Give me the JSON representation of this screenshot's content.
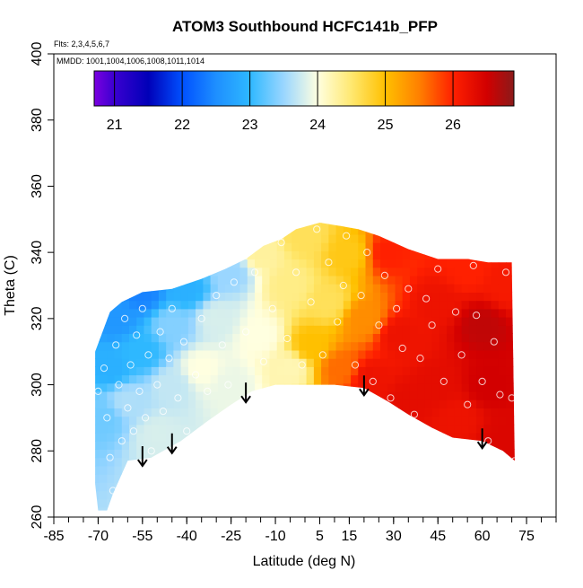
{
  "chart_data": {
    "type": "heatmap",
    "title": "ATOM3 Southbound HCFC141b_PFP",
    "annotations": {
      "flights": "Flts: 2,3,4,5,6,7",
      "dates": "MMDD: 1001,1004,1006,1008,1011,1014"
    },
    "xlabel": "Latitude (deg N)",
    "ylabel": "Theta (C)",
    "xlim": [
      -85,
      85
    ],
    "ylim": [
      260,
      400
    ],
    "x_ticks": [
      -85,
      -70,
      -55,
      -40,
      -25,
      -10,
      5,
      15,
      30,
      45,
      60,
      75
    ],
    "x_minor_step": 5,
    "y_ticks": [
      260,
      280,
      300,
      320,
      340,
      360,
      380,
      400
    ],
    "colorbar": {
      "range": [
        20.7,
        26.9
      ],
      "ticks": [
        21,
        22,
        23,
        24,
        25,
        26
      ],
      "stops": [
        {
          "value": 20.7,
          "color": "#7b00e0"
        },
        {
          "value": 21.0,
          "color": "#3a00d0"
        },
        {
          "value": 21.5,
          "color": "#0000b8"
        },
        {
          "value": 22.0,
          "color": "#0050ff"
        },
        {
          "value": 22.5,
          "color": "#1e8fff"
        },
        {
          "value": 23.0,
          "color": "#2eb8ff"
        },
        {
          "value": 23.5,
          "color": "#9ad6ff"
        },
        {
          "value": 24.0,
          "color": "#ffffe0"
        },
        {
          "value": 24.5,
          "color": "#ffe870"
        },
        {
          "value": 25.0,
          "color": "#ffc000"
        },
        {
          "value": 25.5,
          "color": "#ff8000"
        },
        {
          "value": 26.0,
          "color": "#ff2000"
        },
        {
          "value": 26.5,
          "color": "#d20000"
        },
        {
          "value": 26.9,
          "color": "#8b1a1a"
        }
      ]
    },
    "domain_top": [
      [
        -71,
        310
      ],
      [
        -66,
        322
      ],
      [
        -62,
        325
      ],
      [
        -55,
        328
      ],
      [
        -45,
        329
      ],
      [
        -35,
        332
      ],
      [
        -27,
        335
      ],
      [
        -20,
        338
      ],
      [
        -14,
        342
      ],
      [
        -8,
        344
      ],
      [
        -3,
        347
      ],
      [
        5,
        349
      ],
      [
        12,
        348
      ],
      [
        18,
        347
      ],
      [
        25,
        345
      ],
      [
        35,
        341
      ],
      [
        45,
        338
      ],
      [
        55,
        338
      ],
      [
        62,
        337
      ],
      [
        67,
        337
      ],
      [
        70,
        337
      ]
    ],
    "domain_bottom": [
      [
        71,
        277
      ],
      [
        67,
        280
      ],
      [
        60,
        283
      ],
      [
        50,
        284
      ],
      [
        43,
        287
      ],
      [
        35,
        291
      ],
      [
        28,
        295
      ],
      [
        20,
        299
      ],
      [
        10,
        300
      ],
      [
        0,
        300
      ],
      [
        -10,
        300
      ],
      [
        -18,
        298
      ],
      [
        -25,
        294
      ],
      [
        -33,
        289
      ],
      [
        -42,
        283
      ],
      [
        -52,
        278
      ],
      [
        -60,
        277
      ],
      [
        -65,
        267
      ],
      [
        -67,
        262
      ],
      [
        -70,
        262
      ],
      [
        -71,
        270
      ]
    ],
    "field_anchors": [
      {
        "lat": -68,
        "theta": 290,
        "value": 23.3
      },
      {
        "lat": -66,
        "theta": 305,
        "value": 22.9
      },
      {
        "lat": -64,
        "theta": 320,
        "value": 22.6
      },
      {
        "lat": -55,
        "theta": 328,
        "value": 22.4
      },
      {
        "lat": -60,
        "theta": 295,
        "value": 23.6
      },
      {
        "lat": -55,
        "theta": 310,
        "value": 23.0
      },
      {
        "lat": -50,
        "theta": 285,
        "value": 23.8
      },
      {
        "lat": -45,
        "theta": 300,
        "value": 23.7
      },
      {
        "lat": -45,
        "theta": 318,
        "value": 23.4
      },
      {
        "lat": -40,
        "theta": 329,
        "value": 22.9
      },
      {
        "lat": -35,
        "theta": 305,
        "value": 24.0
      },
      {
        "lat": -30,
        "theta": 320,
        "value": 23.8
      },
      {
        "lat": -25,
        "theta": 300,
        "value": 23.9
      },
      {
        "lat": -25,
        "theta": 334,
        "value": 23.5
      },
      {
        "lat": -15,
        "theta": 315,
        "value": 24.0
      },
      {
        "lat": -15,
        "theta": 340,
        "value": 24.3
      },
      {
        "lat": -5,
        "theta": 305,
        "value": 24.2
      },
      {
        "lat": -5,
        "theta": 330,
        "value": 24.4
      },
      {
        "lat": 0,
        "theta": 345,
        "value": 24.6
      },
      {
        "lat": 2,
        "theta": 312,
        "value": 25.0
      },
      {
        "lat": 8,
        "theta": 325,
        "value": 24.6
      },
      {
        "lat": 12,
        "theta": 305,
        "value": 25.6
      },
      {
        "lat": 15,
        "theta": 340,
        "value": 24.9
      },
      {
        "lat": 20,
        "theta": 320,
        "value": 25.4
      },
      {
        "lat": 22,
        "theta": 302,
        "value": 26.2
      },
      {
        "lat": 28,
        "theta": 340,
        "value": 26.0
      },
      {
        "lat": 32,
        "theta": 315,
        "value": 26.2
      },
      {
        "lat": 35,
        "theta": 295,
        "value": 26.3
      },
      {
        "lat": 45,
        "theta": 325,
        "value": 26.2
      },
      {
        "lat": 45,
        "theta": 300,
        "value": 26.3
      },
      {
        "lat": 52,
        "theta": 290,
        "value": 26.2
      },
      {
        "lat": 55,
        "theta": 335,
        "value": 26.0
      },
      {
        "lat": 60,
        "theta": 318,
        "value": 26.6
      },
      {
        "lat": 62,
        "theta": 300,
        "value": 26.5
      },
      {
        "lat": 68,
        "theta": 285,
        "value": 26.4
      },
      {
        "lat": 68,
        "theta": 330,
        "value": 26.1
      }
    ],
    "sample_points": [
      [
        -70,
        298
      ],
      [
        -68,
        305
      ],
      [
        -67,
        290
      ],
      [
        -66,
        278
      ],
      [
        -65,
        268
      ],
      [
        -64,
        312
      ],
      [
        -63,
        300
      ],
      [
        -62,
        283
      ],
      [
        -61,
        320
      ],
      [
        -60,
        293
      ],
      [
        -59,
        306
      ],
      [
        -58,
        286
      ],
      [
        -57,
        315
      ],
      [
        -56,
        298
      ],
      [
        -55,
        323
      ],
      [
        -54,
        290
      ],
      [
        -53,
        309
      ],
      [
        -52,
        280
      ],
      [
        -50,
        300
      ],
      [
        -49,
        316
      ],
      [
        -48,
        292
      ],
      [
        -46,
        308
      ],
      [
        -45,
        323
      ],
      [
        -43,
        296
      ],
      [
        -41,
        313
      ],
      [
        -40,
        286
      ],
      [
        -37,
        303
      ],
      [
        -35,
        320
      ],
      [
        -33,
        298
      ],
      [
        -30,
        327
      ],
      [
        -28,
        312
      ],
      [
        -26,
        300
      ],
      [
        -24,
        331
      ],
      [
        -20,
        316
      ],
      [
        -17,
        334
      ],
      [
        -14,
        307
      ],
      [
        -11,
        323
      ],
      [
        -8,
        343
      ],
      [
        -6,
        314
      ],
      [
        -3,
        334
      ],
      [
        -1,
        306
      ],
      [
        2,
        325
      ],
      [
        4,
        347
      ],
      [
        6,
        309
      ],
      [
        8,
        337
      ],
      [
        11,
        319
      ],
      [
        13,
        330
      ],
      [
        14,
        345
      ],
      [
        17,
        306
      ],
      [
        19,
        327
      ],
      [
        21,
        340
      ],
      [
        23,
        301
      ],
      [
        25,
        318
      ],
      [
        27,
        333
      ],
      [
        29,
        296
      ],
      [
        31,
        323
      ],
      [
        33,
        311
      ],
      [
        35,
        329
      ],
      [
        37,
        291
      ],
      [
        39,
        308
      ],
      [
        41,
        326
      ],
      [
        43,
        318
      ],
      [
        45,
        335
      ],
      [
        47,
        301
      ],
      [
        49,
        283
      ],
      [
        51,
        322
      ],
      [
        53,
        309
      ],
      [
        55,
        294
      ],
      [
        57,
        336
      ],
      [
        58,
        321
      ],
      [
        60,
        301
      ],
      [
        62,
        283
      ],
      [
        64,
        313
      ],
      [
        66,
        297
      ],
      [
        68,
        334
      ],
      [
        70,
        296
      ],
      [
        71,
        277
      ]
    ],
    "arrow_markers": [
      -55,
      -45,
      -20,
      20,
      60
    ]
  }
}
